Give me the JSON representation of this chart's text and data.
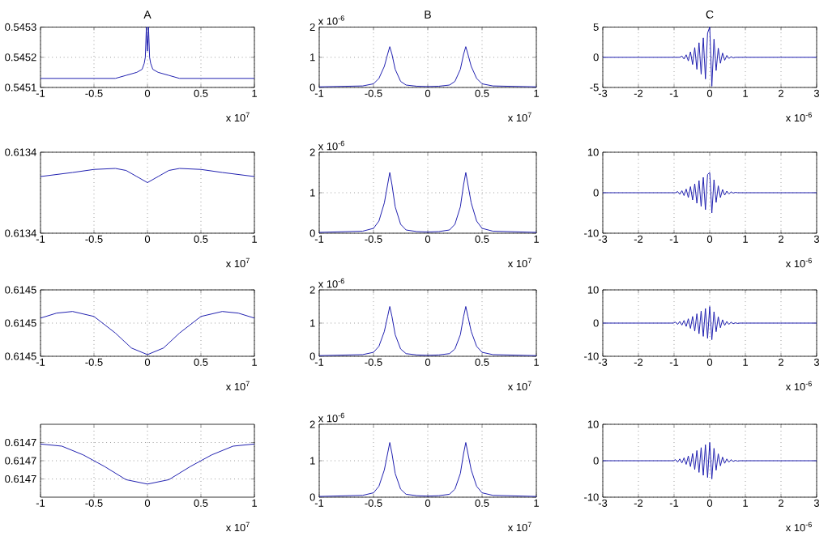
{
  "chart_data": [
    {
      "type": "line",
      "title": "A",
      "x": [
        -1,
        -0.5,
        -0.3,
        -0.2,
        -0.1,
        -0.05,
        -0.03,
        -0.02,
        -0.01,
        0,
        0.01,
        0.02,
        0.03,
        0.05,
        0.1,
        0.2,
        0.3,
        0.5,
        1
      ],
      "values": [
        0.54513,
        0.54513,
        0.54513,
        0.54514,
        0.54515,
        0.54516,
        0.54518,
        0.5452,
        0.5453,
        0.54522,
        0.5453,
        0.5452,
        0.54518,
        0.54516,
        0.54515,
        0.54514,
        0.54513,
        0.54513,
        0.54513
      ],
      "color": "#2020b0",
      "xlim": [
        -1,
        1
      ],
      "xticks": [
        -1,
        -0.5,
        0,
        0.5,
        1
      ],
      "ylim": [
        0.5451,
        0.5453
      ],
      "yticks": [
        0.5451,
        0.5452,
        0.5453
      ],
      "grid": true,
      "annotations": [
        "x 10$^{7}$"
      ]
    },
    {
      "type": "line",
      "title": "B",
      "x": [
        -1,
        -0.6,
        -0.5,
        -0.45,
        -0.4,
        -0.37,
        -0.35,
        -0.33,
        -0.3,
        -0.25,
        -0.2,
        -0.1,
        0,
        0.1,
        0.2,
        0.25,
        0.3,
        0.33,
        0.35,
        0.37,
        0.4,
        0.45,
        0.5,
        0.6,
        1
      ],
      "values": [
        0.02,
        0.05,
        0.12,
        0.3,
        0.7,
        1.1,
        1.35,
        1.1,
        0.6,
        0.2,
        0.08,
        0.04,
        0.03,
        0.04,
        0.08,
        0.2,
        0.6,
        1.1,
        1.35,
        1.1,
        0.7,
        0.3,
        0.12,
        0.05,
        0.02
      ],
      "color": "#2020b0",
      "xlim": [
        -1,
        1
      ],
      "xticks": [
        -1,
        -0.5,
        0,
        0.5,
        1
      ],
      "ylim": [
        0,
        2
      ],
      "yticks": [
        0,
        1,
        2
      ],
      "grid": true,
      "annotations": [
        "x 10$^{7}$",
        "x 10$^{-6}$"
      ]
    },
    {
      "type": "line",
      "title": "C",
      "x": [
        -3,
        -0.84,
        -0.78,
        -0.72,
        -0.66,
        -0.6,
        -0.54,
        -0.48,
        -0.42,
        -0.36,
        -0.3,
        -0.24,
        -0.18,
        -0.12,
        -0.06,
        0,
        0.06,
        0.12,
        0.18,
        0.24,
        0.3,
        0.36,
        0.42,
        0.48,
        0.54,
        0.6,
        0.66,
        0.72,
        0.78,
        3
      ],
      "values": [
        0,
        0,
        0.2,
        -0.3,
        0.4,
        -0.6,
        0.9,
        -1.2,
        1.6,
        -2,
        2.4,
        -2.8,
        3.2,
        -3.6,
        4,
        5,
        -4.8,
        3,
        -2.2,
        1.5,
        -1,
        0.7,
        -0.5,
        0.3,
        -0.2,
        0.1,
        -0.1,
        0,
        0,
        0
      ],
      "color": "#2020b0",
      "xlim": [
        -3,
        3
      ],
      "xticks": [
        -3,
        -2,
        -1,
        0,
        1,
        2,
        3
      ],
      "ylim": [
        -5,
        5
      ],
      "yticks": [
        -5,
        0,
        5
      ],
      "grid": true,
      "annotations": [
        "x 10$^{-6}$"
      ]
    },
    {
      "type": "line",
      "x": [
        -1,
        -0.7,
        -0.5,
        -0.3,
        -0.2,
        -0.1,
        0,
        0.1,
        0.2,
        0.3,
        0.5,
        0.7,
        1
      ],
      "values": [
        0.613416,
        0.61342,
        0.613423,
        0.613424,
        0.613422,
        0.613416,
        0.61341,
        0.613416,
        0.613422,
        0.613424,
        0.613423,
        0.61342,
        0.613416
      ],
      "color": "#2020b0",
      "xlim": [
        -1,
        1
      ],
      "xticks": [
        -1,
        -0.5,
        0,
        0.5,
        1
      ],
      "ylim": [
        0.61336,
        0.61344
      ],
      "yticks": [
        {
          "value": 0.61336,
          "label": "0.6134"
        },
        {
          "value": 0.61344,
          "label": "0.6134"
        }
      ],
      "grid": true,
      "annotations": [
        "x 10$^{7}$"
      ]
    },
    {
      "type": "line",
      "x": [
        -1,
        -0.6,
        -0.5,
        -0.45,
        -0.4,
        -0.37,
        -0.35,
        -0.33,
        -0.3,
        -0.25,
        -0.2,
        -0.1,
        0,
        0.1,
        0.2,
        0.25,
        0.3,
        0.33,
        0.35,
        0.37,
        0.4,
        0.45,
        0.5,
        0.6,
        1
      ],
      "values": [
        0.02,
        0.05,
        0.12,
        0.3,
        0.75,
        1.2,
        1.5,
        1.2,
        0.65,
        0.22,
        0.08,
        0.04,
        0.03,
        0.04,
        0.08,
        0.22,
        0.65,
        1.2,
        1.5,
        1.2,
        0.75,
        0.3,
        0.12,
        0.05,
        0.02
      ],
      "color": "#2020b0",
      "xlim": [
        -1,
        1
      ],
      "xticks": [
        -1,
        -0.5,
        0,
        0.5,
        1
      ],
      "ylim": [
        0,
        2
      ],
      "yticks": [
        0,
        1,
        2
      ],
      "grid": true,
      "annotations": [
        "x 10$^{7}$",
        "x 10$^{-6}$"
      ]
    },
    {
      "type": "line",
      "x": [
        -3,
        -0.96,
        -0.9,
        -0.84,
        -0.78,
        -0.72,
        -0.66,
        -0.6,
        -0.54,
        -0.48,
        -0.42,
        -0.36,
        -0.3,
        -0.24,
        -0.18,
        -0.12,
        -0.06,
        0,
        0.06,
        0.12,
        0.18,
        0.24,
        0.3,
        0.36,
        0.42,
        0.48,
        0.54,
        0.6,
        0.66,
        0.72,
        0.78,
        3
      ],
      "values": [
        0,
        0,
        0.3,
        -0.4,
        0.5,
        -0.7,
        0.9,
        -1.2,
        1.5,
        -1.8,
        2.2,
        -2.6,
        3,
        -3.4,
        3.8,
        -4.2,
        4.5,
        5,
        -5,
        3.2,
        -2.4,
        1.7,
        -1.2,
        0.8,
        -0.6,
        0.4,
        -0.3,
        0.2,
        -0.1,
        0.1,
        0,
        0
      ],
      "color": "#2020b0",
      "xlim": [
        -3,
        3
      ],
      "xticks": [
        -3,
        -2,
        -1,
        0,
        1,
        2,
        3
      ],
      "ylim": [
        -10,
        10
      ],
      "yticks": [
        -10,
        0,
        10
      ],
      "grid": true,
      "annotations": [
        "x 10$^{-6}$"
      ]
    },
    {
      "type": "line",
      "x": [
        -1,
        -0.85,
        -0.7,
        -0.5,
        -0.3,
        -0.15,
        0,
        0.15,
        0.3,
        0.5,
        0.7,
        0.85,
        1
      ],
      "values": [
        0.614503,
        0.614506,
        0.614507,
        0.614504,
        0.614494,
        0.614485,
        0.614481,
        0.614485,
        0.614494,
        0.614504,
        0.614507,
        0.614506,
        0.614503
      ],
      "color": "#2020b0",
      "xlim": [
        -1,
        1
      ],
      "xticks": [
        -1,
        -0.5,
        0,
        0.5,
        1
      ],
      "ylim": [
        0.61448,
        0.61452
      ],
      "yticks": [
        {
          "value": 0.61448,
          "label": "0.6145"
        },
        {
          "value": 0.6145,
          "label": "0.6145"
        },
        {
          "value": 0.61452,
          "label": "0.6145"
        }
      ],
      "grid": true,
      "annotations": [
        "x 10$^{7}$"
      ]
    },
    {
      "type": "line",
      "x": [
        -1,
        -0.6,
        -0.5,
        -0.45,
        -0.4,
        -0.37,
        -0.35,
        -0.33,
        -0.3,
        -0.25,
        -0.2,
        -0.1,
        0,
        0.1,
        0.2,
        0.25,
        0.3,
        0.33,
        0.35,
        0.37,
        0.4,
        0.45,
        0.5,
        0.6,
        1
      ],
      "values": [
        0.02,
        0.05,
        0.12,
        0.3,
        0.75,
        1.2,
        1.5,
        1.2,
        0.65,
        0.22,
        0.08,
        0.04,
        0.03,
        0.04,
        0.08,
        0.22,
        0.65,
        1.2,
        1.5,
        1.2,
        0.75,
        0.3,
        0.12,
        0.05,
        0.02
      ],
      "color": "#2020b0",
      "xlim": [
        -1,
        1
      ],
      "xticks": [
        -1,
        -0.5,
        0,
        0.5,
        1
      ],
      "ylim": [
        0,
        2
      ],
      "yticks": [
        0,
        1,
        2
      ],
      "grid": true,
      "annotations": [
        "x 10$^{7}$",
        "x 10$^{-6}$"
      ]
    },
    {
      "type": "line",
      "x": [
        -3,
        -1.02,
        -0.96,
        -0.9,
        -0.84,
        -0.78,
        -0.72,
        -0.66,
        -0.6,
        -0.54,
        -0.48,
        -0.42,
        -0.36,
        -0.3,
        -0.24,
        -0.18,
        -0.12,
        -0.06,
        0,
        0.06,
        0.12,
        0.18,
        0.24,
        0.3,
        0.36,
        0.42,
        0.48,
        0.54,
        0.6,
        0.66,
        0.72,
        0.78,
        0.84,
        3
      ],
      "values": [
        0,
        0,
        0.3,
        -0.4,
        0.5,
        -0.6,
        0.8,
        -1,
        1.3,
        -1.6,
        2,
        -2.4,
        2.8,
        -3.2,
        3.6,
        -4,
        4.4,
        -4.6,
        5,
        -5,
        3.4,
        -2.6,
        1.9,
        -1.4,
        1,
        -0.7,
        0.5,
        -0.4,
        0.3,
        -0.2,
        0.1,
        -0.1,
        0,
        0
      ],
      "color": "#2020b0",
      "xlim": [
        -3,
        3
      ],
      "xticks": [
        -3,
        -2,
        -1,
        0,
        1,
        2,
        3
      ],
      "ylim": [
        -10,
        10
      ],
      "yticks": [
        -10,
        0,
        10
      ],
      "grid": true,
      "annotations": [
        "x 10$^{-6}$"
      ]
    },
    {
      "type": "line",
      "x": [
        -1,
        -0.8,
        -0.6,
        -0.4,
        -0.2,
        0,
        0.2,
        0.4,
        0.6,
        0.8,
        1
      ],
      "values": [
        0.614723,
        0.61472,
        0.614708,
        0.614692,
        0.614674,
        0.614668,
        0.614674,
        0.614692,
        0.614708,
        0.61472,
        0.614723
      ],
      "color": "#2020b0",
      "xlim": [
        -1,
        1
      ],
      "xticks": [
        -1,
        -0.5,
        0,
        0.5,
        1
      ],
      "ylim": [
        0.61465,
        0.61475
      ],
      "yticks": [
        {
          "value": 0.614675,
          "label": "0.6147"
        },
        {
          "value": 0.6147,
          "label": "0.6147"
        },
        {
          "value": 0.614725,
          "label": "0.6147"
        }
      ],
      "grid": true,
      "annotations": [
        "x 10$^{7}$"
      ]
    },
    {
      "type": "line",
      "x": [
        -1,
        -0.6,
        -0.5,
        -0.45,
        -0.4,
        -0.37,
        -0.35,
        -0.33,
        -0.3,
        -0.25,
        -0.2,
        -0.1,
        0,
        0.1,
        0.2,
        0.25,
        0.3,
        0.33,
        0.35,
        0.37,
        0.4,
        0.45,
        0.5,
        0.6,
        1
      ],
      "values": [
        0.02,
        0.05,
        0.12,
        0.3,
        0.75,
        1.2,
        1.5,
        1.2,
        0.65,
        0.22,
        0.08,
        0.04,
        0.03,
        0.04,
        0.08,
        0.22,
        0.65,
        1.2,
        1.5,
        1.2,
        0.75,
        0.3,
        0.12,
        0.05,
        0.02
      ],
      "color": "#2020b0",
      "xlim": [
        -1,
        1
      ],
      "xticks": [
        -1,
        -0.5,
        0,
        0.5,
        1
      ],
      "ylim": [
        0,
        2
      ],
      "yticks": [
        0,
        1,
        2
      ],
      "grid": true,
      "annotations": [
        "x 10$^{7}$",
        "x 10$^{-6}$"
      ]
    },
    {
      "type": "line",
      "x": [
        -3,
        -1.02,
        -0.96,
        -0.9,
        -0.84,
        -0.78,
        -0.72,
        -0.66,
        -0.6,
        -0.54,
        -0.48,
        -0.42,
        -0.36,
        -0.3,
        -0.24,
        -0.18,
        -0.12,
        -0.06,
        0,
        0.06,
        0.12,
        0.18,
        0.24,
        0.3,
        0.36,
        0.42,
        0.48,
        0.54,
        0.6,
        0.66,
        0.72,
        0.78,
        0.84,
        3
      ],
      "values": [
        0,
        0,
        0.3,
        -0.4,
        0.5,
        -0.6,
        0.8,
        -1,
        1.3,
        -1.6,
        2,
        -2.4,
        2.8,
        -3.2,
        3.6,
        -4,
        4.4,
        -4.6,
        5,
        -5,
        3.4,
        -2.6,
        1.9,
        -1.4,
        1,
        -0.7,
        0.5,
        -0.4,
        0.3,
        -0.2,
        0.1,
        -0.1,
        0,
        0
      ],
      "color": "#2020b0",
      "xlim": [
        -3,
        3
      ],
      "xticks": [
        -3,
        -2,
        -1,
        0,
        1,
        2,
        3
      ],
      "ylim": [
        -10,
        10
      ],
      "yticks": [
        -10,
        0,
        10
      ],
      "grid": true,
      "annotations": [
        "x 10$^{-6}$"
      ]
    }
  ]
}
